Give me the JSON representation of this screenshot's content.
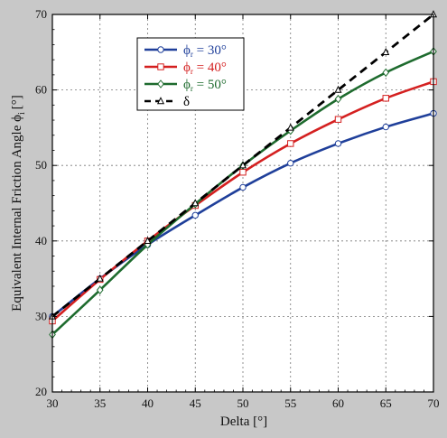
{
  "chart_data": {
    "type": "line",
    "title": "",
    "xlabel": "Delta [°]",
    "ylabel_main": "Equivalent Internal Friction Angle ϕ",
    "ylabel_sub": "i",
    "ylabel_unit": "[°]",
    "xlim": [
      30,
      70
    ],
    "ylim": [
      20,
      70
    ],
    "xticks": [
      "30",
      "35",
      "40",
      "45",
      "50",
      "55",
      "60",
      "65",
      "70"
    ],
    "yticks": [
      "20",
      "30",
      "40",
      "50",
      "60",
      "70"
    ],
    "grid": true,
    "legend_position": "top-left",
    "x": [
      30,
      35,
      40,
      45,
      50,
      55,
      60,
      65,
      70
    ],
    "series": [
      {
        "label_main": "ϕ",
        "label_sub": "r",
        "label_rest": " = 30°",
        "color": "#1f3f9a",
        "marker": "circle",
        "dash": "",
        "values": [
          30.0,
          35.0,
          39.5,
          43.4,
          47.1,
          50.3,
          52.9,
          55.1,
          56.9
        ]
      },
      {
        "label_main": "ϕ",
        "label_sub": "r",
        "label_rest": " = 40°",
        "color": "#d42020",
        "marker": "square",
        "dash": "",
        "values": [
          29.4,
          34.9,
          40.0,
          44.7,
          49.1,
          52.9,
          56.1,
          58.9,
          61.1
        ]
      },
      {
        "label_main": "ϕ",
        "label_sub": "r",
        "label_rest": " = 50°",
        "color": "#1e6b2e",
        "marker": "diamond",
        "dash": "",
        "values": [
          27.6,
          33.5,
          39.5,
          44.9,
          50.0,
          54.6,
          58.8,
          62.3,
          65.1
        ]
      },
      {
        "label_main": "δ",
        "label_sub": "",
        "label_rest": "",
        "color": "#000000",
        "marker": "triangle",
        "dash": "9,6",
        "values": [
          30.0,
          35.0,
          40.0,
          45.0,
          50.0,
          55.0,
          60.0,
          65.0,
          70.0
        ]
      }
    ]
  }
}
